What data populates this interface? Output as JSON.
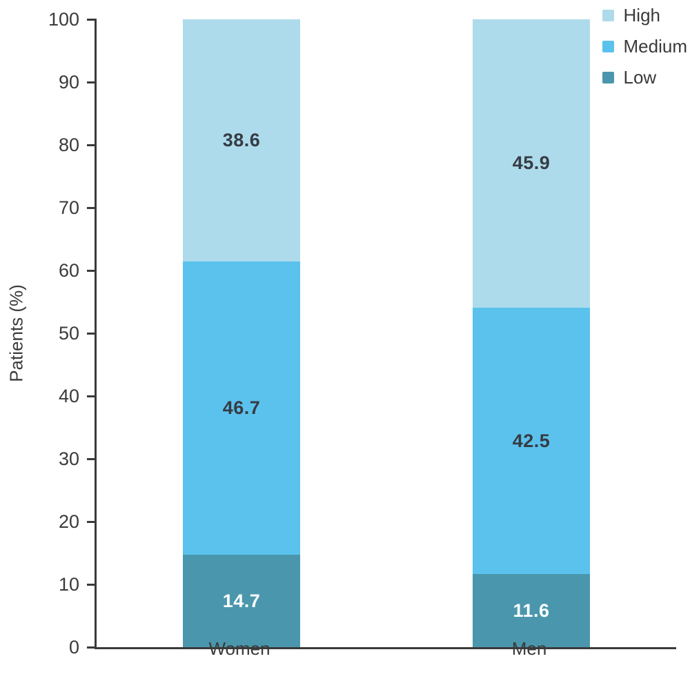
{
  "chart_data": {
    "type": "bar",
    "subtype": "stacked-vertical",
    "title": "",
    "xlabel": "",
    "ylabel": "Patients (%)",
    "ylim": [
      0,
      100
    ],
    "yticks": [
      0,
      10,
      20,
      30,
      40,
      50,
      60,
      70,
      80,
      90,
      100
    ],
    "grid": false,
    "categories": [
      "Women",
      "Men"
    ],
    "series": [
      {
        "name": "Low",
        "color": "#4A97AD",
        "label_color": "#ffffff",
        "values": [
          14.7,
          11.6
        ]
      },
      {
        "name": "Medium",
        "color": "#5BC2ED",
        "label_color": "#363C44",
        "values": [
          46.7,
          42.5
        ]
      },
      {
        "name": "High",
        "color": "#AEDBEB",
        "label_color": "#363C44",
        "values": [
          38.6,
          45.9
        ]
      }
    ],
    "legend": {
      "position": "top-right",
      "order": [
        "High",
        "Medium",
        "Low"
      ]
    },
    "colors": {
      "axis": "#3a3a3a",
      "text": "#3a3a3a",
      "background": "#ffffff"
    }
  }
}
